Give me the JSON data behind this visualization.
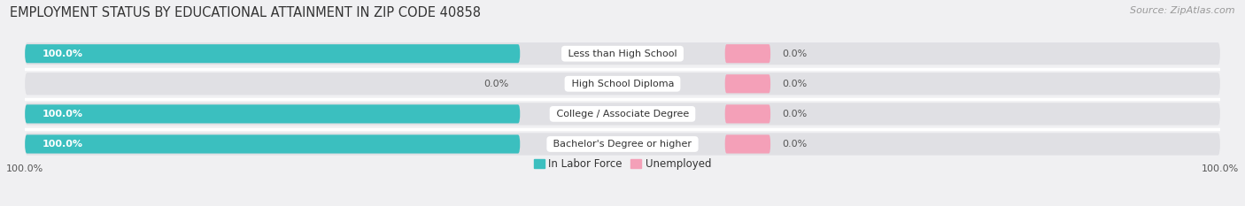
{
  "title": "EMPLOYMENT STATUS BY EDUCATIONAL ATTAINMENT IN ZIP CODE 40858",
  "source": "Source: ZipAtlas.com",
  "categories": [
    "Less than High School",
    "High School Diploma",
    "College / Associate Degree",
    "Bachelor's Degree or higher"
  ],
  "in_labor_force": [
    100.0,
    0.0,
    100.0,
    100.0
  ],
  "unemployed": [
    0.0,
    0.0,
    0.0,
    0.0
  ],
  "bar_color_labor": "#3bbfbf",
  "bar_color_unemployed": "#f4a0b8",
  "bg_color": "#f0f0f2",
  "bar_bg_color": "#e0e0e4",
  "title_fontsize": 10.5,
  "source_fontsize": 8,
  "label_fontsize": 8,
  "value_fontsize": 8,
  "legend_fontsize": 8.5,
  "axis_label_fontsize": 8,
  "bar_height": 0.62,
  "legend_labor": "In Labor Force",
  "legend_unemployed": "Unemployed",
  "max_val": 100,
  "unemployed_bar_width": 8.0,
  "row_sep_color": "#ffffff"
}
